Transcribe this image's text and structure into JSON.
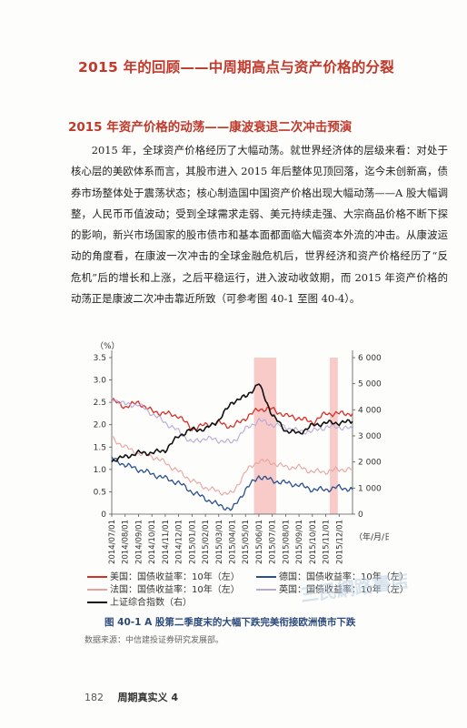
{
  "headings": {
    "chapter": "2015 年的回顾——中周期高点与资产价格的分裂",
    "section": "2015 年资产价格的动荡——康波衰退二次冲击预演"
  },
  "paragraph": "2015 年，全球资产价格经历了大幅动荡。就世界经济体的层级来看：对处于核心层的美欧体系而言，其股市进入 2015 年后整体见顶回落，迄今未创新高，债券市场整体处于震荡状态；核心制造国中国资产价格出现大幅动荡——A 股大幅调整，人民币币值波动；受到全球需求走弱、美元持续走强、大宗商品价格不断下探的影响，新兴市场国家的股市债市和基本面都面临大幅资本外流的冲击。从康波运动的角度看，在康波一次冲击的全球金融危机后，世界经济和资产价格经历了“反危机”后的增长和上涨，之后平稳运行，进入波动收敛期，而 2015 年资产价格的动荡正是康波二次冲击靠近所致（可参考图 40-1 至图 40-4）。",
  "chart_data": {
    "type": "line",
    "left_axis_unit": "（%）",
    "right_axis_unit": "",
    "x_unit": "（年/月/日）",
    "x_ticks": [
      "2014/07/01",
      "2014/08/01",
      "2014/09/01",
      "2014/10/01",
      "2014/11/01",
      "2014/12/01",
      "2015/01/01",
      "2015/02/01",
      "2015/03/01",
      "2015/04/01",
      "2015/05/01",
      "2015/06/01",
      "2015/07/01",
      "2015/08/01",
      "2015/09/01",
      "2015/10/01",
      "2015/11/01",
      "2015/12/01"
    ],
    "ylim_left": [
      0,
      3.5
    ],
    "yticks_left": [
      "0",
      "0.5",
      "1.0",
      "1.5",
      "2.0",
      "2.5",
      "3.0",
      "3.5"
    ],
    "ylim_right": [
      0,
      6000
    ],
    "yticks_right": [
      "0",
      "1 000",
      "2 000",
      "3 000",
      "4 000",
      "5 000",
      "6 000"
    ],
    "highlight_periods": [
      [
        "2015/05/20",
        "2015/07/10"
      ],
      [
        "2015/11/10",
        "2015/11/28"
      ]
    ],
    "x_index_months": [
      0,
      1,
      2,
      3,
      4,
      5,
      6,
      7,
      8,
      9,
      10,
      11,
      12,
      13,
      14,
      15,
      16,
      17,
      18
    ],
    "series": [
      {
        "name": "美国：国债收益率：10年（左）",
        "axis": "left",
        "color": "#d7302a",
        "width": 1.3,
        "values": [
          2.55,
          2.4,
          2.5,
          2.3,
          2.25,
          2.2,
          1.9,
          2.0,
          2.05,
          1.95,
          2.15,
          2.35,
          2.35,
          2.2,
          2.15,
          2.05,
          2.25,
          2.25,
          2.25
        ]
      },
      {
        "name": "德国：国债收益率：10年（左）",
        "axis": "left",
        "color": "#2a4f8f",
        "width": 1.3,
        "values": [
          1.25,
          1.1,
          1.0,
          0.9,
          0.8,
          0.7,
          0.5,
          0.35,
          0.2,
          0.1,
          0.55,
          0.85,
          0.75,
          0.7,
          0.65,
          0.55,
          0.55,
          0.6,
          0.55
        ]
      },
      {
        "name": "法国：国债收益率：10年（左）",
        "axis": "left",
        "color": "#e8a39f",
        "width": 1.1,
        "values": [
          1.7,
          1.5,
          1.35,
          1.3,
          1.15,
          0.95,
          0.75,
          0.6,
          0.5,
          0.45,
          0.95,
          1.2,
          1.15,
          1.05,
          1.05,
          0.95,
          0.95,
          1.0,
          1.0
        ]
      },
      {
        "name": "英国：国债收益率：10年（左）",
        "axis": "left",
        "color": "#b9a9d6",
        "width": 1.1,
        "values": [
          2.6,
          2.45,
          2.45,
          2.25,
          2.05,
          1.85,
          1.6,
          1.7,
          1.65,
          1.6,
          1.9,
          2.1,
          2.0,
          1.95,
          1.85,
          1.85,
          1.95,
          1.95,
          1.9
        ]
      },
      {
        "name": "上证综合指数（右）",
        "axis": "right",
        "color": "#111111",
        "width": 1.6,
        "values": [
          2050,
          2200,
          2350,
          2350,
          2450,
          3000,
          3250,
          3250,
          3600,
          4300,
          4500,
          5000,
          3800,
          3200,
          3100,
          3400,
          3500,
          3500,
          3550
        ]
      }
    ]
  },
  "legend": [
    {
      "label": "美国：国债收益率：10年（左）",
      "color": "#d7302a"
    },
    {
      "label": "德国：国债收益率：10年（左）",
      "color": "#2a4f8f"
    },
    {
      "label": "法国：国债收益率：10年（左）",
      "color": "#e8a39f"
    },
    {
      "label": "英国：国债收益率：10年（左）",
      "color": "#b9a9d6"
    },
    {
      "label": "上证综合指数（右）",
      "color": "#111111"
    }
  ],
  "caption": "图 40-1  A 股第二季度末的大幅下跌完美衔接欧洲债市下跌",
  "source": "数据来源：中信建投证券研究发展部。",
  "footer": {
    "page": "182",
    "book": "周期真实义 4"
  },
  "watermark": "三民網路書店"
}
